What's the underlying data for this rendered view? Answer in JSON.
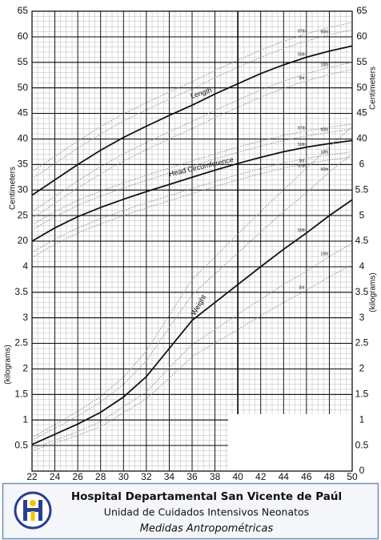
{
  "chart_data": {
    "type": "line",
    "x": [
      22,
      24,
      26,
      28,
      30,
      32,
      34,
      36,
      38,
      40,
      42,
      44,
      46,
      48,
      50
    ],
    "xlim": [
      22,
      50
    ],
    "xticks": [
      22,
      24,
      26,
      28,
      30,
      32,
      34,
      36,
      38,
      40,
      42,
      44,
      46,
      48,
      50
    ],
    "ylim": [
      -25,
      65
    ],
    "yticks": [
      20,
      25,
      30,
      35,
      40,
      45,
      50,
      55,
      60,
      65
    ],
    "yticks_right": [
      40,
      45,
      50,
      55,
      60,
      65
    ],
    "y2lim": [
      0,
      9
    ],
    "y2ticks": [
      0.5,
      1,
      1.5,
      2,
      2.5,
      3,
      3.5,
      4
    ],
    "y2ticks_right": [
      0,
      0.5,
      1,
      1.5,
      2,
      2.5,
      3,
      3.5,
      4,
      4.5,
      5,
      5.5,
      6
    ],
    "ylabel": "Centimeters",
    "y2label": "(kilograms)",
    "grid": true,
    "groups": [
      {
        "label": "Length",
        "axis": "y",
        "series": [
          {
            "name": "3rd",
            "color": "#8a8a8a",
            "values": [
              24.4,
              27.4,
              30.4,
              33.2,
              35.7,
              37.9,
              40,
              42,
              44.2,
              46.2,
              48.2,
              49.9,
              51.4,
              52.6,
              53.6
            ]
          },
          {
            "name": "10th",
            "color": "#8a8a8a",
            "values": [
              25.8,
              28.8,
              31.8,
              34.6,
              37.1,
              39.3,
              41.4,
              43.4,
              45.6,
              47.6,
              49.6,
              51.3,
              52.8,
              54,
              55
            ]
          },
          {
            "name": "50th",
            "color": "#111111",
            "values": [
              29,
              32,
              35,
              37.8,
              40.3,
              42.5,
              44.6,
              46.6,
              48.8,
              50.8,
              52.8,
              54.5,
              56,
              57.2,
              58.2
            ]
          },
          {
            "name": "90th",
            "color": "#8a8a8a",
            "values": [
              32.2,
              35.2,
              38.2,
              41,
              43.5,
              45.7,
              47.8,
              49.8,
              52,
              54,
              56,
              57.7,
              59.2,
              60.4,
              61.4
            ]
          },
          {
            "name": "97th",
            "color": "#8a8a8a",
            "values": [
              33.6,
              36.6,
              39.6,
              42.4,
              44.9,
              47.1,
              49.2,
              51.2,
              53.4,
              55.4,
              57.4,
              59.1,
              60.6,
              61.8,
              62.8
            ]
          }
        ]
      },
      {
        "label": "Head Circumference",
        "axis": "y",
        "series": [
          {
            "name": "3rd",
            "color": "#8a8a8a",
            "values": [
              16.8,
              19.4,
              21.6,
              23.4,
              25,
              26.5,
              27.9,
              29.3,
              30.7,
              32,
              33.2,
              34.3,
              35.2,
              35.9,
              36.5
            ]
          },
          {
            "name": "10th",
            "color": "#8a8a8a",
            "values": [
              17.8,
              20.4,
              22.6,
              24.4,
              26,
              27.5,
              28.9,
              30.3,
              31.7,
              33,
              34.2,
              35.3,
              36.2,
              36.9,
              37.5
            ]
          },
          {
            "name": "50th",
            "color": "#111111",
            "values": [
              20,
              22.6,
              24.8,
              26.6,
              28.2,
              29.7,
              31.1,
              32.5,
              33.9,
              35.2,
              36.4,
              37.5,
              38.4,
              39.1,
              39.7
            ]
          },
          {
            "name": "90th",
            "color": "#8a8a8a",
            "values": [
              22.2,
              24.8,
              27,
              28.8,
              30.4,
              31.9,
              33.3,
              34.7,
              36.1,
              37.4,
              38.6,
              39.7,
              40.6,
              41.3,
              41.9
            ]
          },
          {
            "name": "97th",
            "color": "#8a8a8a",
            "values": [
              23.2,
              25.8,
              28,
              29.8,
              31.4,
              32.9,
              34.3,
              35.7,
              37.1,
              38.4,
              39.6,
              40.7,
              41.6,
              42.3,
              42.9
            ]
          }
        ]
      },
      {
        "label": "Weight",
        "axis": "y2",
        "series": [
          {
            "name": "3rd",
            "color": "#8a8a8a",
            "values": [
              0.4,
              0.55,
              0.7,
              0.87,
              1.14,
              1.41,
              1.82,
              2.24,
              2.51,
              2.77,
              3.04,
              3.3,
              3.54,
              3.8,
              4.04
            ]
          },
          {
            "name": "10th",
            "color": "#8a8a8a",
            "values": [
              0.44,
              0.6,
              0.77,
              0.97,
              1.26,
              1.55,
              2.02,
              2.48,
              2.77,
              3.07,
              3.36,
              3.65,
              3.91,
              4.2,
              4.46
            ]
          },
          {
            "name": "50th",
            "color": "#111111",
            "values": [
              0.52,
              0.72,
              0.92,
              1.15,
              1.45,
              1.85,
              2.4,
              2.95,
              3.3,
              3.65,
              4,
              4.34,
              4.66,
              5,
              5.31
            ]
          },
          {
            "name": "90th",
            "color": "#8a8a8a",
            "values": [
              0.61,
              0.84,
              1.08,
              1.35,
              1.7,
              2.16,
              2.81,
              3.45,
              3.86,
              4.27,
              4.68,
              5.08,
              5.45,
              5.85,
              6.21
            ]
          },
          {
            "name": "97th",
            "color": "#8a8a8a",
            "values": [
              0.66,
              0.91,
              1.17,
              1.46,
              1.84,
              2.35,
              3.05,
              3.75,
              4.19,
              4.64,
              5.08,
              5.51,
              5.92,
              6.35,
              6.74
            ]
          }
        ]
      }
    ]
  },
  "footer": {
    "title": "Hospital Departamental San Vicente de Paúl",
    "subtitle": "Unidad de Cuidados Intensivos Neonatos",
    "caption": "Medidas Antropométricas"
  }
}
